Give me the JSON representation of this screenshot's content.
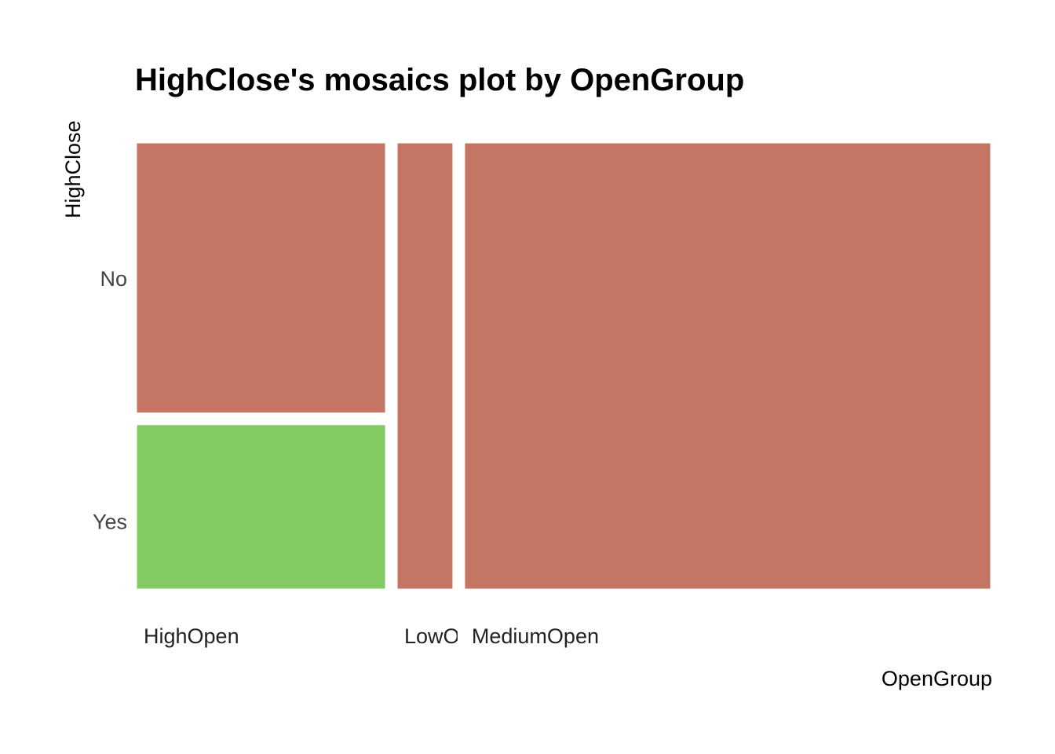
{
  "chart_data": {
    "type": "mosaic",
    "title": "HighClose's mosaics plot by OpenGroup",
    "xlabel": "OpenGroup",
    "ylabel": "HighClose",
    "x_categories": [
      "HighOpen",
      "LowOpen",
      "MediumOpen"
    ],
    "x_tick_labels": [
      "HighOpen",
      "LowO",
      "MediumOpen"
    ],
    "y_categories": [
      "No",
      "Yes"
    ],
    "column_proportions": [
      0.3,
      0.07,
      0.63
    ],
    "cells": [
      {
        "x": "HighOpen",
        "y": "No",
        "proportion": 0.62,
        "color": "#C47563"
      },
      {
        "x": "HighOpen",
        "y": "Yes",
        "proportion": 0.38,
        "color": "#82CB63"
      },
      {
        "x": "LowOpen",
        "y": "No",
        "proportion": 1.0,
        "color": "#C47563"
      },
      {
        "x": "MediumOpen",
        "y": "No",
        "proportion": 1.0,
        "color": "#C47563"
      }
    ],
    "grid": false,
    "legend": "none"
  },
  "colors": {
    "no": "#C47563",
    "yes": "#82CB63",
    "background": "#FFFFFF"
  }
}
